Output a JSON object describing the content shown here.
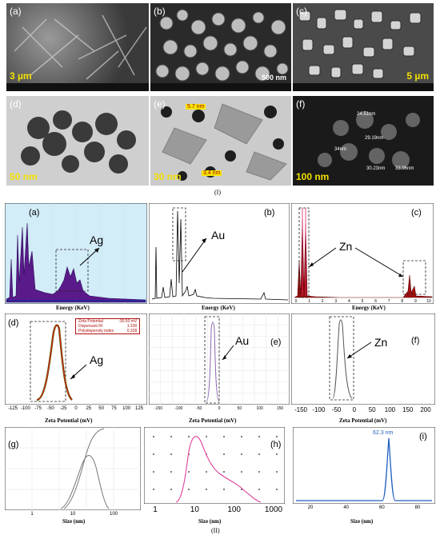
{
  "section_I": {
    "label": "(I)",
    "panels": [
      {
        "label": "(a)",
        "scale": "3 µm"
      },
      {
        "label": "(b)",
        "scale": "500 nm"
      },
      {
        "label": "(c)",
        "scale": "5 µm"
      },
      {
        "label": "(d)",
        "scale": "50 nm"
      },
      {
        "label": "(e)",
        "scale": "30 nm",
        "annotations": [
          "5.7 nm",
          "3.4 nm"
        ]
      },
      {
        "label": "(f)",
        "scale": "100 nm",
        "annotations": [
          "24.51nm",
          "29.19nm",
          "30.23nm",
          "33.96nm",
          "34nm"
        ]
      }
    ]
  },
  "section_II": {
    "label": "(II)",
    "edx": [
      {
        "label": "(a)",
        "element": "Ag",
        "xlabel": "Energy (KeV)"
      },
      {
        "label": "(b)",
        "element": "Au",
        "xlabel": "Energy (KeV)"
      },
      {
        "label": "(c)",
        "element": "Zn",
        "xlabel": "Energy (KeV)",
        "ticks": [
          "0",
          "1",
          "2",
          "3",
          "4",
          "5",
          "6",
          "7",
          "8",
          "9",
          "10"
        ]
      }
    ],
    "zeta": [
      {
        "label": "(d)",
        "element": "Ag",
        "xlabel": "Zeta Potential   (mV)",
        "ticks": [
          "-125",
          "-100",
          "-75",
          "-50",
          "-25",
          "0",
          "25",
          "50",
          "75",
          "100",
          "125"
        ],
        "table": [
          [
            "Zeta Potential",
            "-30.50 mV"
          ],
          [
            "Dispersant RI",
            "1.330"
          ],
          [
            "Polydispersity index",
            "0.328"
          ]
        ]
      },
      {
        "label": "(e)",
        "element": "Au",
        "xlabel": "Zeta Potential  (mV)",
        "ticks": [
          "-150",
          "-100",
          "-50",
          "0",
          "50",
          "100",
          "150"
        ]
      },
      {
        "label": "(f)",
        "element": "Zn",
        "xlabel": "Zeta Potential  (mV)",
        "ticks": [
          "-150",
          "-100",
          "-50",
          "0",
          "50",
          "100",
          "150",
          "200"
        ]
      }
    ],
    "size": [
      {
        "label": "(g)",
        "xlabel": "Size (nm)",
        "ticks": [
          "1",
          "10",
          "100"
        ]
      },
      {
        "label": "(h)",
        "xlabel": "Size (nm)",
        "ticks": [
          "1",
          "10",
          "100",
          "1000"
        ]
      },
      {
        "label": "(i)",
        "xlabel": "Size (nm)",
        "ticks": [
          "20",
          "40",
          "60",
          "80"
        ],
        "peak": "62.3 nm"
      }
    ]
  }
}
